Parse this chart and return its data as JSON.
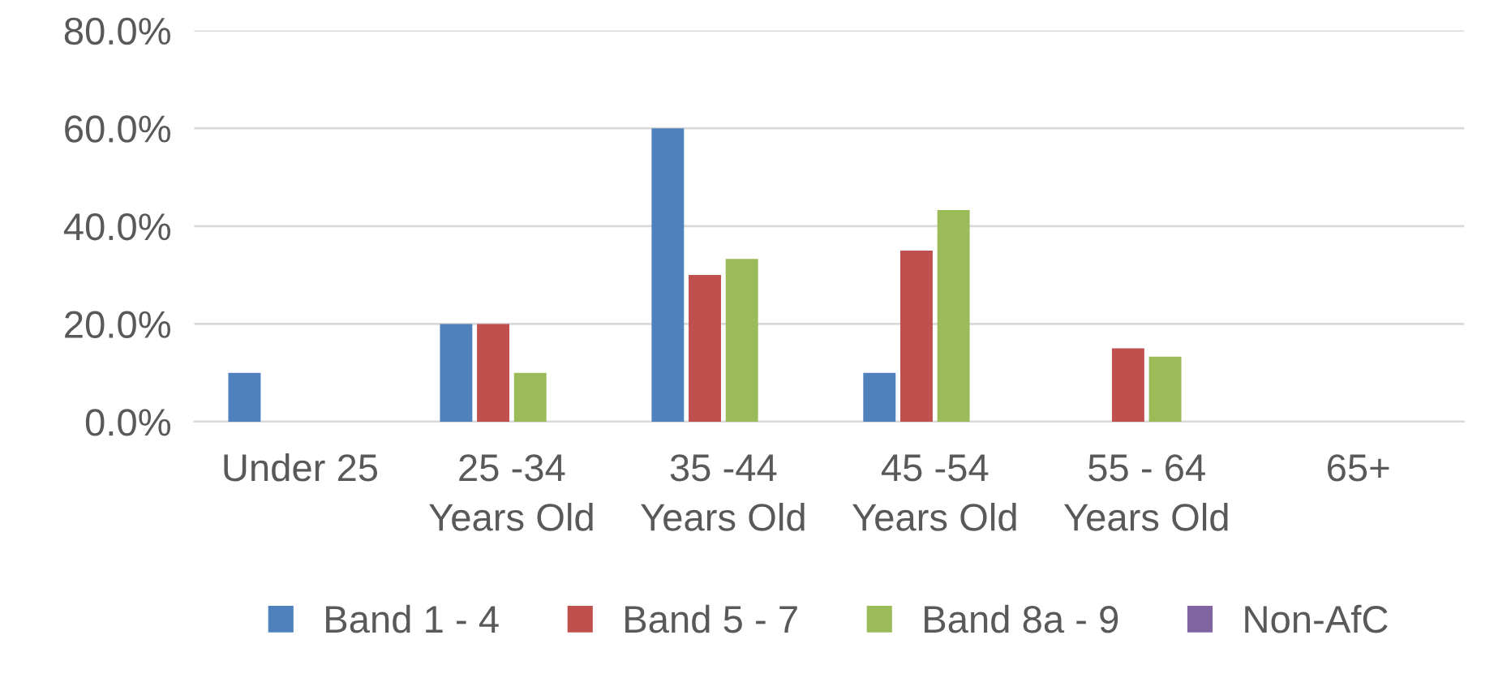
{
  "chart_data": {
    "type": "bar",
    "categories": [
      "Under 25",
      "25 -34\nYears Old",
      "35 -44\nYears Old",
      "45 -54\nYears Old",
      "55 - 64\nYears Old",
      "65+"
    ],
    "series": [
      {
        "name": "Band 1 - 4",
        "color": "#4f81bd",
        "values": [
          10,
          20,
          60,
          10,
          0,
          0
        ]
      },
      {
        "name": "Band 5 - 7",
        "color": "#c0504d",
        "values": [
          0,
          20,
          30,
          35,
          15,
          0
        ]
      },
      {
        "name": "Band 8a - 9",
        "color": "#9bbb59",
        "values": [
          0,
          10,
          33.3,
          43.3,
          13.3,
          0
        ]
      },
      {
        "name": "Non-AfC",
        "color": "#8064a2",
        "values": [
          0,
          0,
          0,
          0,
          0,
          0
        ]
      }
    ],
    "ylim": [
      0,
      80
    ],
    "yticks": [
      {
        "value": 0,
        "label": "0.0%"
      },
      {
        "value": 20,
        "label": "20.0%"
      },
      {
        "value": 40,
        "label": "40.0%"
      },
      {
        "value": 60,
        "label": "60.0%"
      },
      {
        "value": 80,
        "label": "80.0%"
      }
    ],
    "grid": "y",
    "legend": "bottom"
  }
}
